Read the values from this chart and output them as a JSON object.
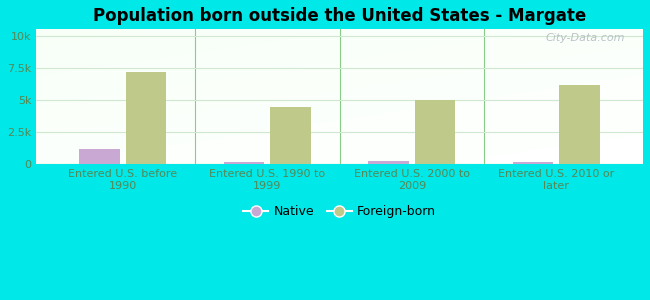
{
  "title": "Population born outside the United States - Margate",
  "categories": [
    "Entered U.S. before\n1990",
    "Entered U.S. 1990 to\n1999",
    "Entered U.S. 2000 to\n2009",
    "Entered U.S. 2010 or\nlater"
  ],
  "native_values": [
    1200,
    200,
    300,
    150
  ],
  "foreign_values": [
    7200,
    4500,
    5000,
    6200
  ],
  "native_color": "#c9a8d4",
  "foreign_color": "#bfc98a",
  "background_outer": "#00e8e8",
  "yticks": [
    0,
    2500,
    5000,
    7500,
    10000
  ],
  "ytick_labels": [
    "0",
    "2.5k",
    "5k",
    "7.5k",
    "10k"
  ],
  "ylim": [
    0,
    10500
  ],
  "bar_width": 0.28,
  "legend_native": "Native",
  "legend_foreign": "Foreign-born",
  "watermark": "City-Data.com",
  "title_fontsize": 12,
  "tick_fontsize": 8,
  "legend_fontsize": 9,
  "tick_color": "#558855",
  "grid_color": "#d0e8d0",
  "divider_color": "#88cc88"
}
